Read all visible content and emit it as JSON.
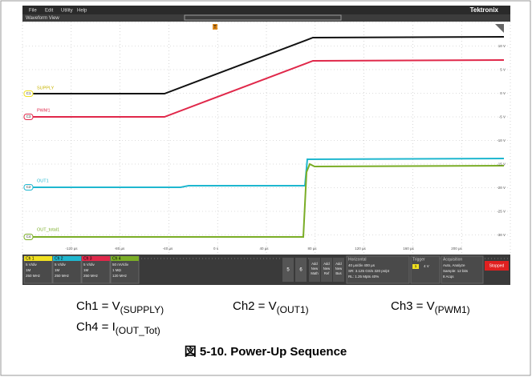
{
  "menu": [
    "File",
    "Edit",
    "Utility",
    "Help"
  ],
  "brand": "Tektronix",
  "view_title": "Waveform View",
  "trigger_marker": "T",
  "y_labels": [
    "10 V",
    "5 V",
    "0 V",
    "-5 V",
    "-10 V",
    "-15 V",
    "-20 V",
    "-25 V",
    "-30 V"
  ],
  "x_labels": [
    "-120 µs",
    "-80 µs",
    "-40 µs",
    "0 s",
    "40 µs",
    "80 µs",
    "120 µs",
    "160 µs",
    "200 µs"
  ],
  "channels": [
    {
      "marker": "C1",
      "label": "SUPPLY"
    },
    {
      "marker": "C3",
      "label": "PWM1"
    },
    {
      "marker": "C2",
      "label": "OUT1"
    },
    {
      "marker": "C4",
      "label": "OUT_total1"
    }
  ],
  "channel_boxes": [
    {
      "title": "Ch 1",
      "lines": [
        "5 V/div",
        "1M",
        "250 MHz"
      ]
    },
    {
      "title": "Ch 2",
      "lines": [
        "5 V/div",
        "1M",
        "250 MHz"
      ]
    },
    {
      "title": "Ch 3",
      "lines": [
        "5 V/div",
        "1M",
        "250 MHz"
      ]
    },
    {
      "title": "Ch 4",
      "lines": [
        "50 mV/div",
        "1 MΩ",
        "120 MHz"
      ]
    }
  ],
  "buttons": [
    "5",
    "6"
  ],
  "add_buttons": [
    [
      "Add",
      "New",
      "Math"
    ],
    [
      "Add",
      "New",
      "Ref"
    ],
    [
      "Add",
      "New",
      "Bus"
    ]
  ],
  "horizontal": {
    "title": "Horizontal",
    "lines": [
      "40 µs/div      400 µs",
      "SR: 3.125 GS/s  320 ps/pt",
      "RL: 1.25 Mpts   40%"
    ]
  },
  "trigger": {
    "title": "Trigger",
    "source": "1",
    "level": "4 V"
  },
  "acquisition": {
    "title": "Acquisition",
    "lines": [
      "Auto,     Analyze",
      "Sample: 12 bits",
      "8 Acqs"
    ]
  },
  "stopped": "Stopped",
  "captions": [
    {
      "main": "Ch1 = V",
      "sub": "(SUPPLY)"
    },
    {
      "main": "Ch2 = V",
      "sub": "(OUT1)"
    },
    {
      "main": "Ch3 = V",
      "sub": "(PWM1)"
    },
    {
      "main": "Ch4 = I",
      "sub": "(OUT_Tot)"
    }
  ],
  "figure_caption": "図 5-10. Power-Up Sequence"
}
